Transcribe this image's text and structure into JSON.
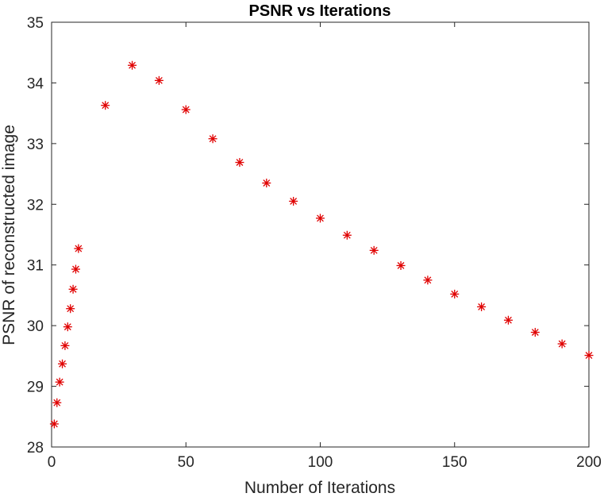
{
  "chart_data": {
    "type": "scatter",
    "title": "PSNR vs Iterations",
    "xlabel": "Number of Iterations",
    "ylabel": "PSNR of reconstructed image",
    "xlim": [
      0,
      200
    ],
    "ylim": [
      28,
      35
    ],
    "xticks": [
      0,
      50,
      100,
      150,
      200
    ],
    "yticks": [
      28,
      29,
      30,
      31,
      32,
      33,
      34,
      35
    ],
    "grid": false,
    "marker": "asterisk",
    "marker_color": "#e00000",
    "series": [
      {
        "x": [
          1,
          2,
          3,
          4,
          5,
          6,
          7,
          8,
          9,
          10,
          20,
          30,
          40,
          50,
          60,
          70,
          80,
          90,
          100,
          110,
          120,
          130,
          140,
          150,
          160,
          170,
          180,
          190,
          200
        ],
        "y": [
          28.38,
          28.73,
          29.07,
          29.37,
          29.67,
          29.98,
          30.28,
          30.6,
          30.93,
          31.27,
          33.63,
          34.29,
          34.04,
          33.56,
          33.08,
          32.69,
          32.35,
          32.05,
          31.77,
          31.49,
          31.24,
          30.99,
          30.75,
          30.52,
          30.31,
          30.09,
          29.89,
          29.7,
          29.51
        ]
      }
    ]
  }
}
